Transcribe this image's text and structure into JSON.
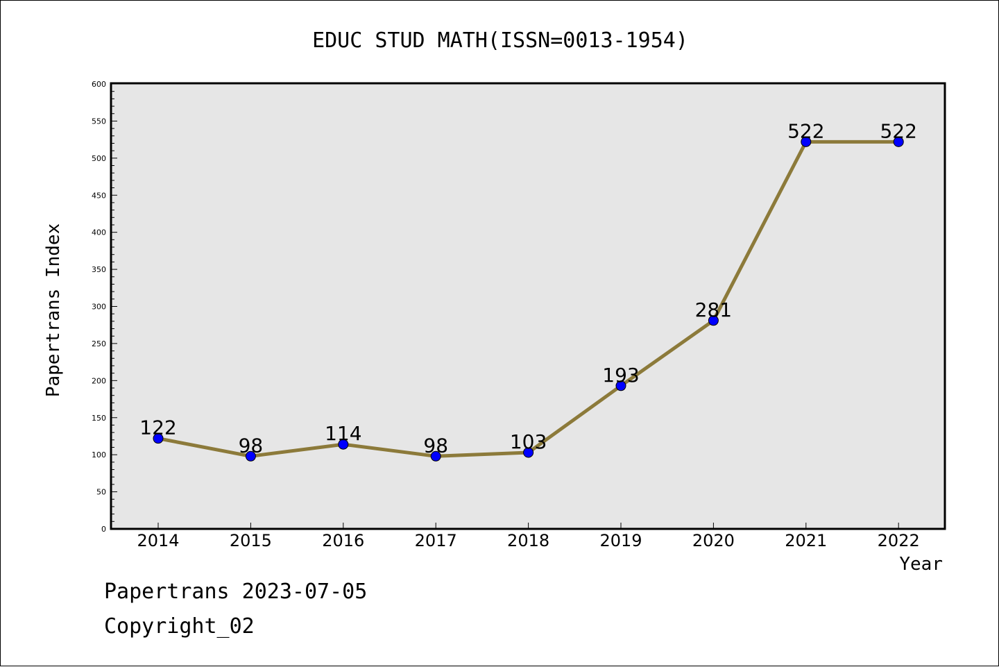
{
  "chart_data": {
    "type": "line",
    "title": "EDUC STUD MATH(ISSN=0013-1954)",
    "xlabel": "Year",
    "ylabel": "Papertrans Index",
    "categories": [
      "2014",
      "2015",
      "2016",
      "2017",
      "2018",
      "2019",
      "2020",
      "2021",
      "2022"
    ],
    "series": [
      {
        "values": [
          122,
          98,
          114,
          98,
          103,
          193,
          281,
          522,
          522
        ]
      }
    ],
    "data_labels": [
      "122",
      "98",
      "114",
      "98",
      "103",
      "193",
      "281",
      "522",
      "522"
    ],
    "ylim": [
      0,
      600
    ],
    "y_ticks": [
      "0",
      "50",
      "100",
      "150",
      "200",
      "250",
      "300",
      "350",
      "400",
      "450",
      "500",
      "550",
      "600"
    ],
    "grid": false,
    "legend": "none",
    "colors": {
      "line": "#8c7a3a",
      "marker": "#0000ff",
      "plot_background": "#e6e6e6"
    }
  },
  "footer": {
    "line1": "Papertrans 2023-07-05",
    "line2": "Copyright_02"
  }
}
